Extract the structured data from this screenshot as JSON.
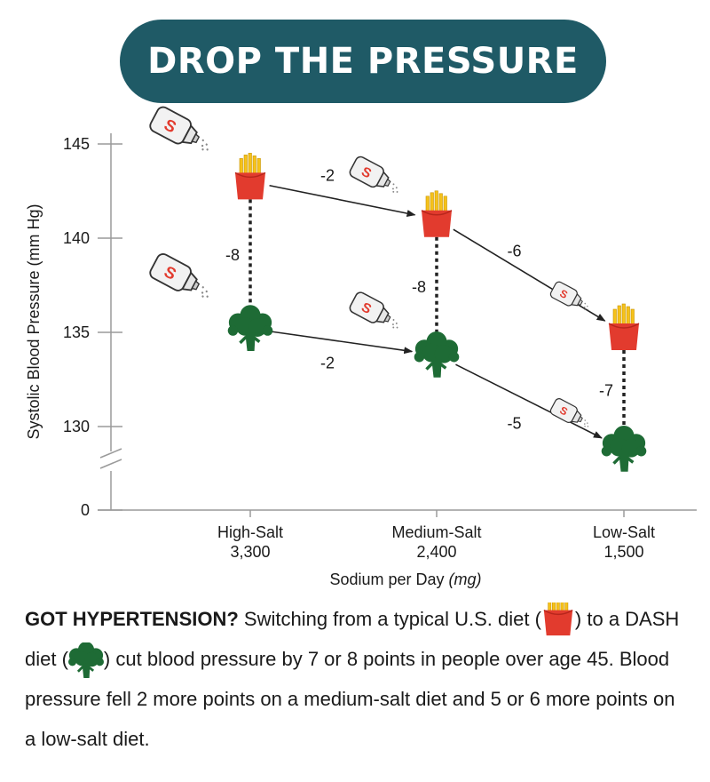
{
  "title": "DROP THE PRESSURE",
  "chart_data": {
    "type": "line",
    "title": "DROP THE PRESSURE",
    "xlabel": "Sodium per Day",
    "xlabel_unit": "(mg)",
    "ylabel": "Systolic Blood Pressure (mm Hg)",
    "y_ticks": [
      145,
      140,
      135,
      130,
      0
    ],
    "ylim": [
      128,
      146
    ],
    "axis_break": true,
    "categories": [
      {
        "name": "High-Salt",
        "sodium": "3,300"
      },
      {
        "name": "Medium-Salt",
        "sodium": "2,400"
      },
      {
        "name": "Low-Salt",
        "sodium": "1,500"
      }
    ],
    "series": [
      {
        "name": "Typical U.S. diet",
        "icon": "fries-icon",
        "color": "#e23b2e",
        "values": [
          143.0,
          141.0,
          135.0
        ]
      },
      {
        "name": "DASH diet",
        "icon": "broccoli-icon",
        "color": "#1e6b35",
        "values": [
          135.2,
          133.8,
          128.8
        ]
      }
    ],
    "step_changes": {
      "typical": [
        "-2",
        "-6"
      ],
      "dash": [
        "-2",
        "-5"
      ]
    },
    "diet_gaps": [
      "-8",
      "-8",
      "-7"
    ]
  },
  "caption": {
    "lead": "GOT HYPERTENSION?",
    "part1": " Switching from a typical U.S. diet (",
    "part2": ") to a DASH diet (",
    "part3": ") cut blood pressure by 7 or 8 points in people over age 45. Blood pressure fell 2 more points on a medium-salt diet and 5 or 6 more points on a low-salt diet."
  },
  "colors": {
    "banner": "#1f5a66",
    "fries_red": "#e23b2e",
    "fries_yellow": "#f6c21a",
    "broccoli": "#1e6b35"
  }
}
